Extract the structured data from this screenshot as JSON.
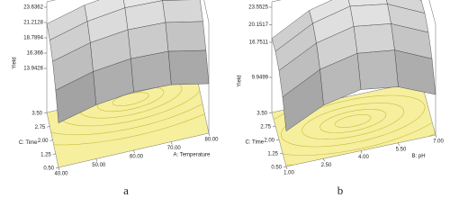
{
  "chart_data": [
    {
      "type": "surface",
      "caption": "a",
      "zlabel": "Yield",
      "xlabel": "A: Temperature",
      "ylabel": "C: Time",
      "xlim": [
        40,
        80
      ],
      "xticks": [
        {
          "value": 40,
          "label": "40.00"
        },
        {
          "value": 50,
          "label": "50.00"
        },
        {
          "value": 60,
          "label": "60.00"
        },
        {
          "value": 70,
          "label": "70.00"
        },
        {
          "value": 80,
          "label": "80.00"
        }
      ],
      "ylim": [
        0.5,
        3.5
      ],
      "yticks": [
        {
          "value": 0.5,
          "label": "0.50"
        },
        {
          "value": 1.25,
          "label": "1.25"
        },
        {
          "value": 2,
          "label": "2.00"
        },
        {
          "value": 2.75,
          "label": "2.75"
        },
        {
          "value": 3.5,
          "label": "3.50"
        }
      ],
      "zlim": [
        13.9426,
        23.6362
      ],
      "zticks": [
        13.9426,
        16.366,
        18.7894,
        21.2128,
        23.6362
      ],
      "x": [
        40,
        50,
        60,
        70,
        80
      ],
      "y": [
        0.5,
        1.25,
        2,
        2.75,
        3.5
      ],
      "z": [
        [
          14.0,
          15.5,
          16.2,
          16.0,
          14.8
        ],
        [
          17.0,
          18.6,
          19.3,
          19.1,
          17.9
        ],
        [
          19.4,
          21.0,
          21.7,
          21.5,
          20.3
        ],
        [
          20.6,
          22.2,
          23.0,
          22.8,
          21.6
        ],
        [
          21.0,
          22.6,
          23.4,
          23.2,
          22.0
        ]
      ]
    },
    {
      "type": "surface",
      "caption": "b",
      "zlabel": "Yield",
      "xlabel": "B: pH",
      "ylabel": "C: Time",
      "xlim": [
        1,
        7
      ],
      "xticks": [
        {
          "value": 1,
          "label": "1.00"
        },
        {
          "value": 2.5,
          "label": "2.50"
        },
        {
          "value": 4,
          "label": "4.00"
        },
        {
          "value": 5.5,
          "label": "5.50"
        },
        {
          "value": 7,
          "label": "7.00"
        }
      ],
      "ylim": [
        0.5,
        3.5
      ],
      "yticks": [
        {
          "value": 0.5,
          "label": "0.50"
        },
        {
          "value": 1.25,
          "label": "1.25"
        },
        {
          "value": 2,
          "label": "2.00"
        },
        {
          "value": 2.75,
          "label": "2.75"
        },
        {
          "value": 3.5,
          "label": "3.50"
        }
      ],
      "zlim": [
        9.9499,
        23.5525
      ],
      "zticks": [
        9.9499,
        16.7511,
        20.1517,
        23.5525
      ],
      "x": [
        1,
        2.5,
        4,
        5.5,
        7
      ],
      "y": [
        0.5,
        1.25,
        2,
        2.75,
        3.5
      ],
      "z": [
        [
          10.0,
          13.5,
          15.0,
          14.0,
          11.0
        ],
        [
          14.0,
          17.8,
          19.4,
          18.5,
          15.3
        ],
        [
          16.5,
          20.3,
          22.0,
          21.0,
          17.8
        ],
        [
          17.6,
          21.5,
          23.3,
          22.2,
          18.9
        ],
        [
          17.5,
          21.4,
          23.2,
          22.1,
          18.8
        ]
      ]
    }
  ]
}
